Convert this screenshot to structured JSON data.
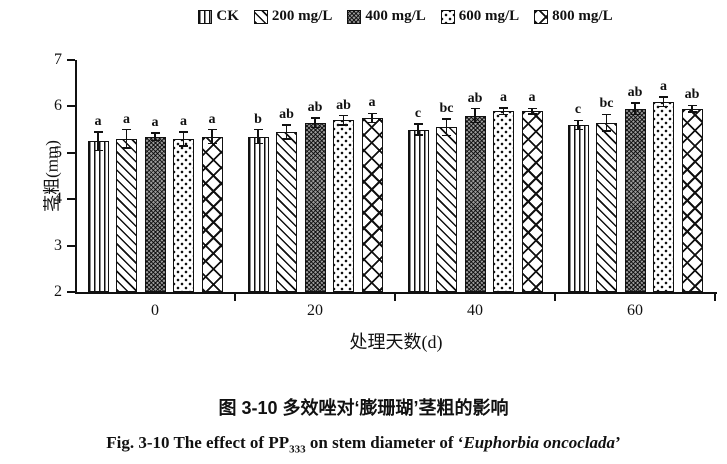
{
  "chart_data": {
    "type": "bar",
    "title": "",
    "xlabel": "处理天数(d)",
    "ylabel": "茎粗(mm)",
    "ylim": [
      2,
      7
    ],
    "ytick_step": 1,
    "grid": false,
    "legend_position": "top",
    "categories": [
      "0",
      "20",
      "40",
      "60"
    ],
    "series": [
      {
        "name": "CK",
        "pattern": "ck",
        "values": [
          5.25,
          5.35,
          5.5,
          5.6
        ],
        "errors": [
          0.2,
          0.15,
          0.12,
          0.1
        ],
        "letters": [
          "a",
          "b",
          "c",
          "c"
        ]
      },
      {
        "name": "200 mg/L",
        "pattern": "s200",
        "values": [
          5.3,
          5.45,
          5.55,
          5.65
        ],
        "errors": [
          0.2,
          0.15,
          0.18,
          0.18
        ],
        "letters": [
          "a",
          "ab",
          "bc",
          "bc"
        ]
      },
      {
        "name": "400 mg/L",
        "pattern": "s400",
        "values": [
          5.35,
          5.65,
          5.8,
          5.95
        ],
        "errors": [
          0.08,
          0.1,
          0.15,
          0.12
        ],
        "letters": [
          "a",
          "ab",
          "ab",
          "ab"
        ]
      },
      {
        "name": "600 mg/L",
        "pattern": "s600",
        "values": [
          5.3,
          5.7,
          5.9,
          6.1
        ],
        "errors": [
          0.15,
          0.1,
          0.07,
          0.1
        ],
        "letters": [
          "a",
          "ab",
          "a",
          "a"
        ]
      },
      {
        "name": "800 mg/L",
        "pattern": "s800",
        "values": [
          5.35,
          5.75,
          5.9,
          5.95
        ],
        "errors": [
          0.15,
          0.1,
          0.06,
          0.07
        ],
        "letters": [
          "a",
          "a",
          "a",
          "ab"
        ]
      }
    ]
  },
  "captions": {
    "chinese": "图 3-10 多效唑对‘膨珊瑚’茎粗的影响",
    "english_prefix": "Fig. 3-10 The effect of PP",
    "english_sub": "333",
    "english_mid": " on stem diameter of ‘",
    "english_species": "Euphorbia oncoclada",
    "english_suffix": "’"
  },
  "colors": {
    "ink": "#111111",
    "background": "#ffffff"
  }
}
